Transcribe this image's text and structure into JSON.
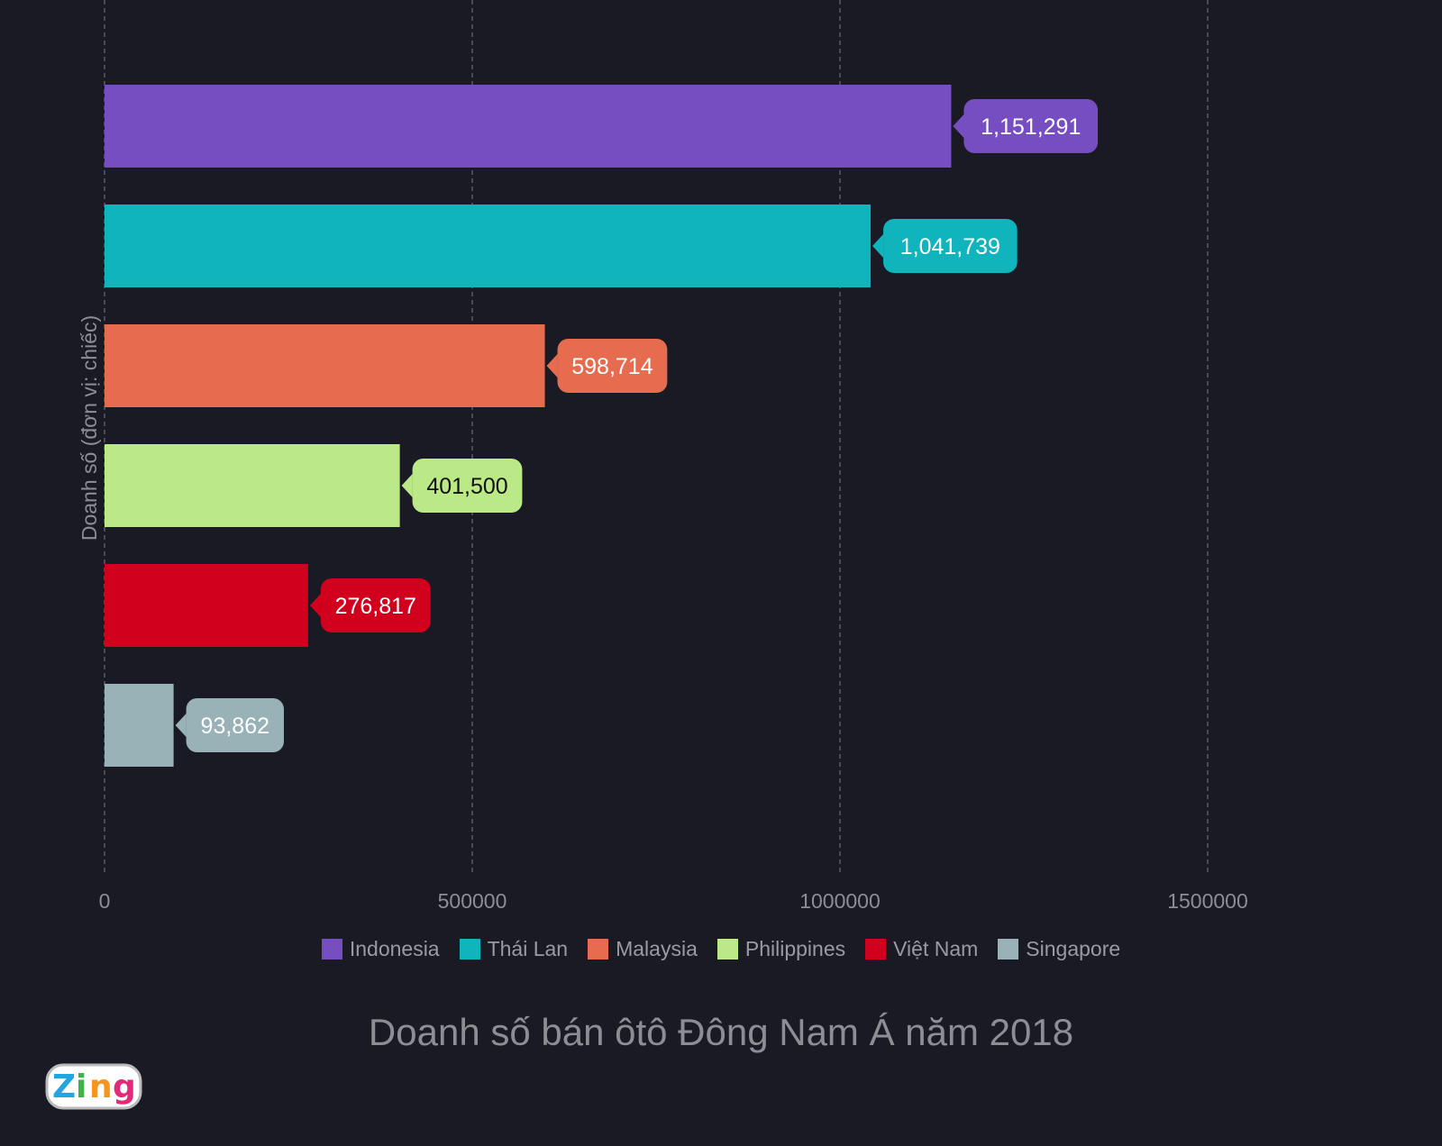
{
  "chart_data": {
    "type": "bar",
    "orientation": "horizontal",
    "title": "Doanh số bán ôtô Đông Nam Á năm 2018",
    "ylabel": "Doanh số (đơn vị: chiếc)",
    "xlabel": "",
    "xlim": [
      0,
      1750000
    ],
    "xticks": [
      0,
      500000,
      1000000,
      1500000
    ],
    "xtick_labels": [
      "0",
      "500000",
      "1000000",
      "1500000"
    ],
    "grid": "vertical dashed",
    "legend_position": "bottom",
    "categories": [
      "Indonesia",
      "Thái Lan",
      "Malaysia",
      "Philippines",
      "Việt Nam",
      "Singapore"
    ],
    "values": [
      1151291,
      1041739,
      598714,
      401500,
      276817,
      93862
    ],
    "data_labels": [
      "1,151,291",
      "1,041,739",
      "598,714",
      "401,500",
      "276,817",
      "93,862"
    ],
    "colors": [
      "#764ec2",
      "#10b4bd",
      "#e76c4f",
      "#bbe987",
      "#d1001c",
      "#98b2b7"
    ],
    "label_text_colors": [
      "#ffffff",
      "#ffffff",
      "#ffffff",
      "#111111",
      "#ffffff",
      "#ffffff"
    ]
  },
  "logo": {
    "text": "Zing"
  }
}
